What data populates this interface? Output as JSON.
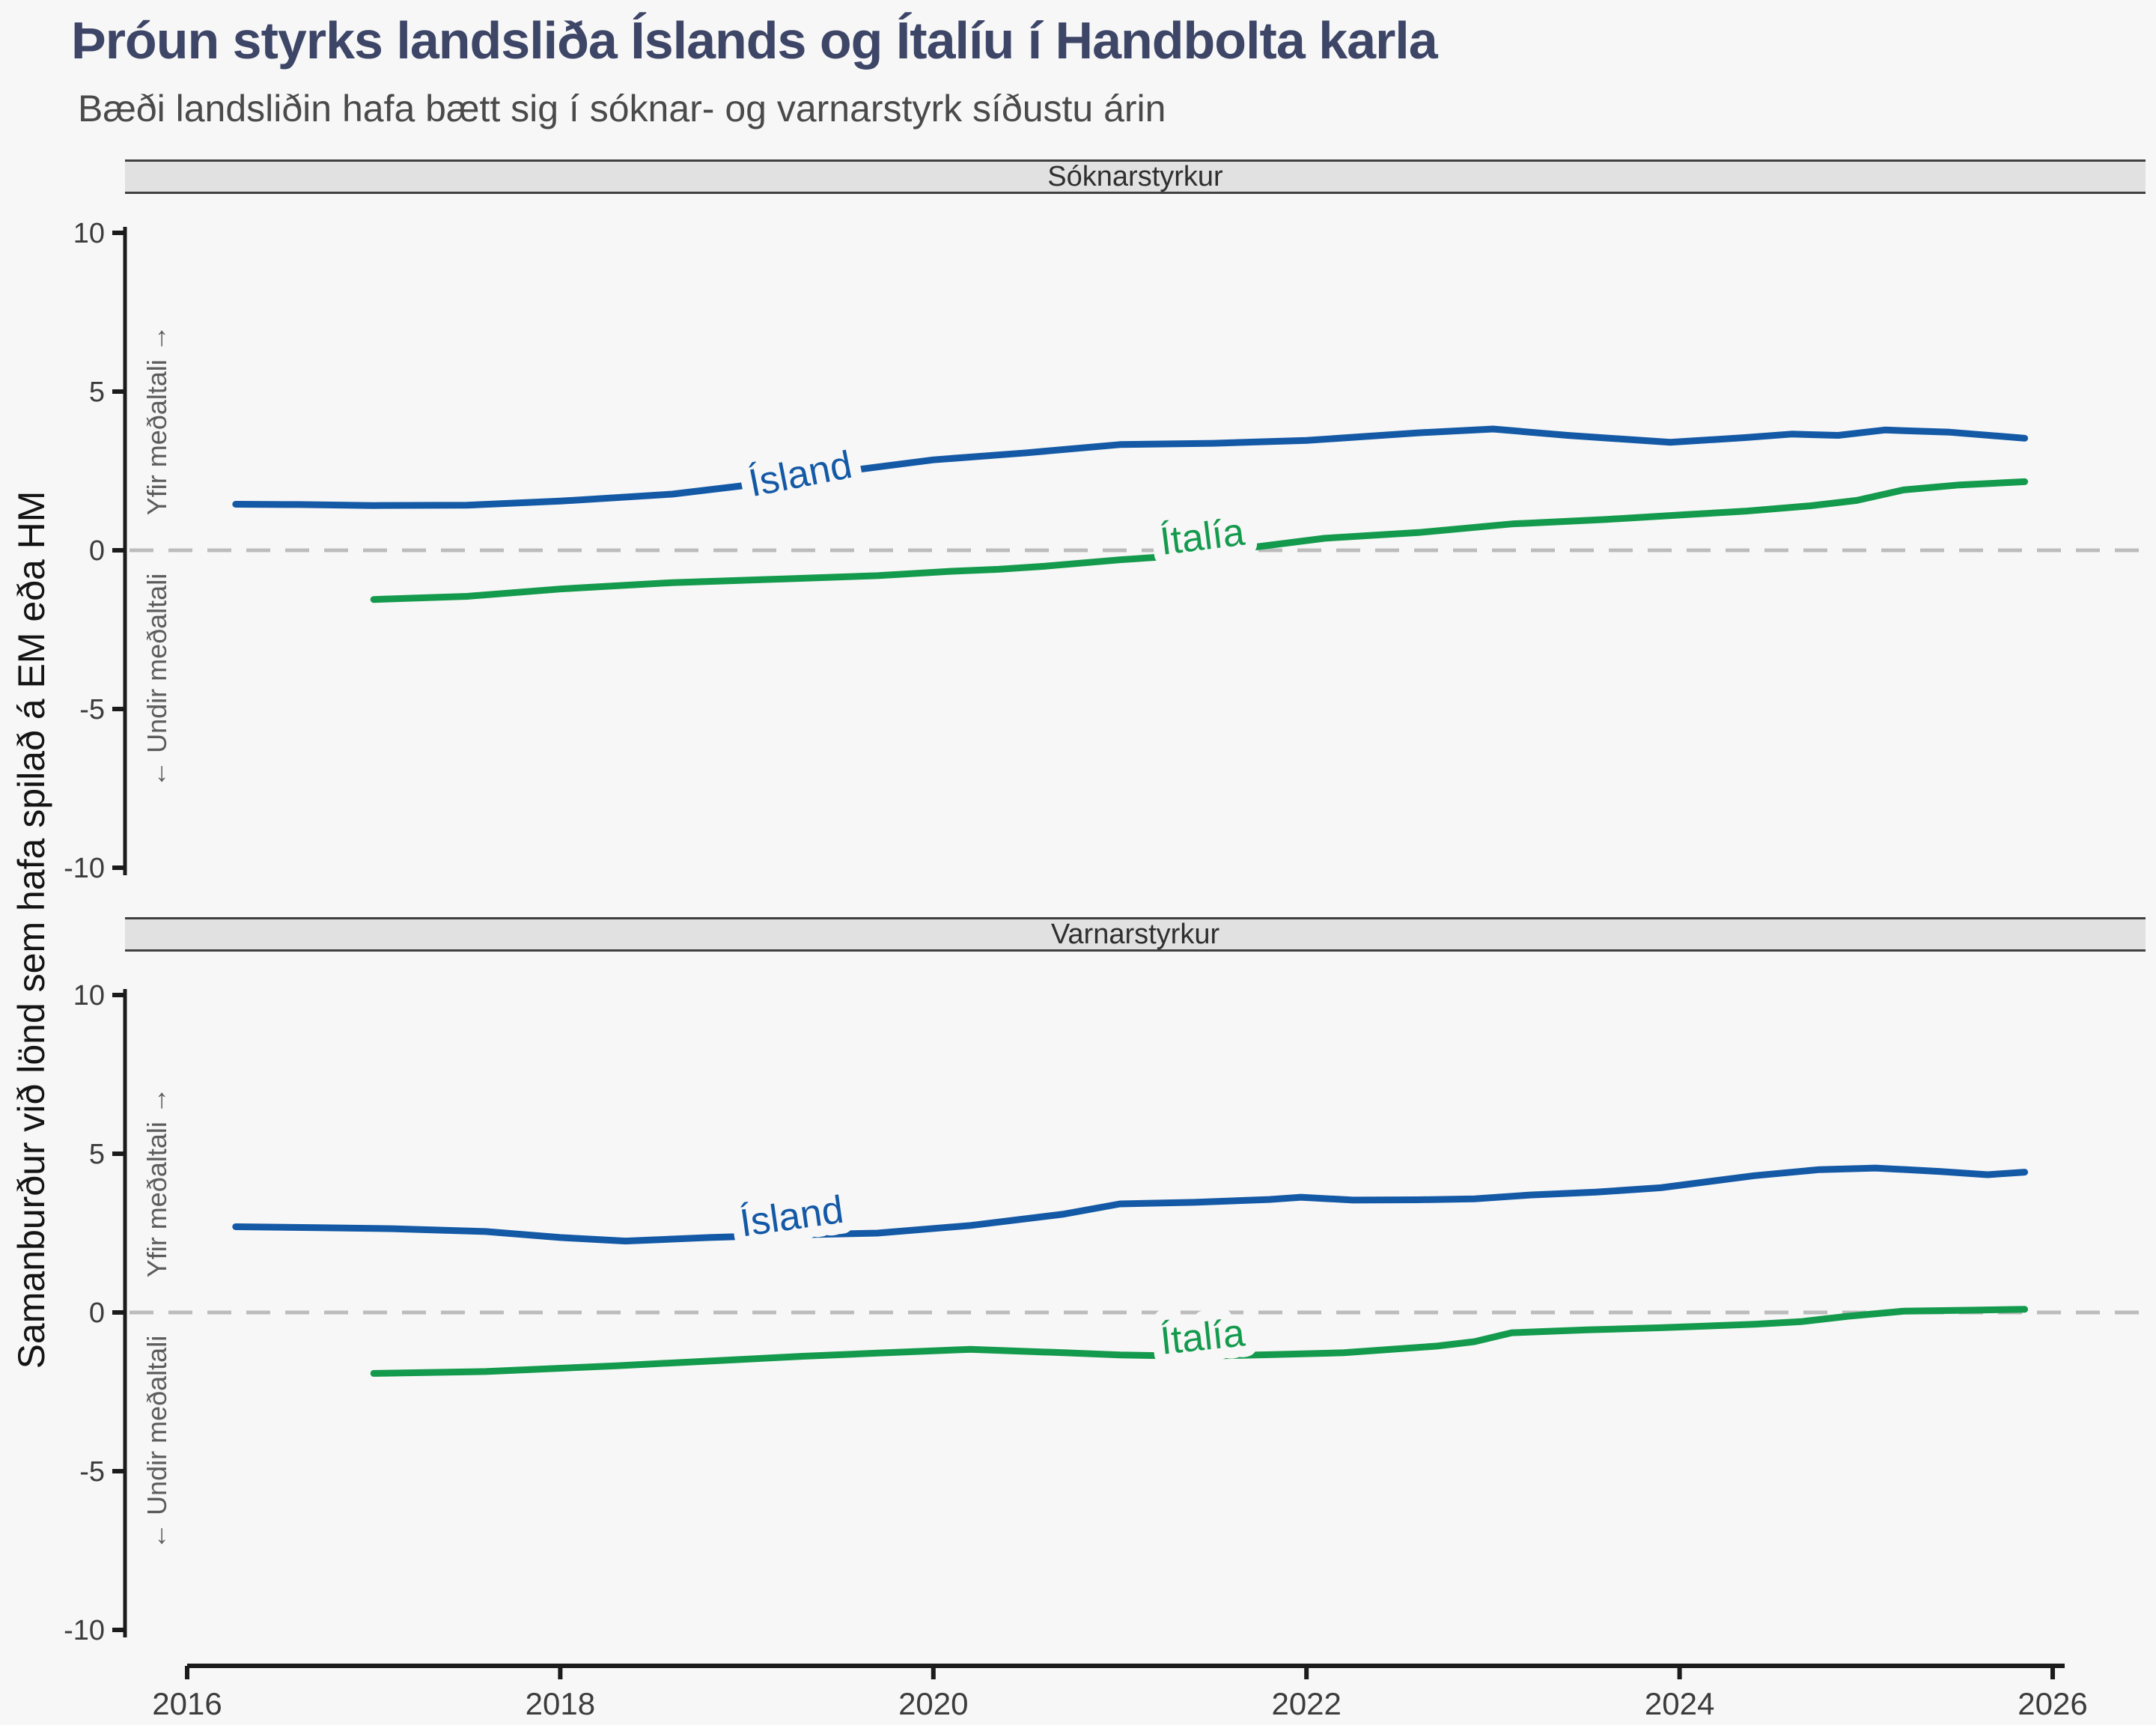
{
  "title": "Þróun styrks landsliða Íslands og Ítalíu í Handbolta karla",
  "subtitle": "Bæði landsliðin hafa bætt sig í sóknar- og varnarstyrk síðustu árin",
  "y_axis_outer_label": "Samanburður við lönd sem hafa spilað á EM eða HM",
  "annotations": {
    "above_zero": "Yfir meðaltali →",
    "below_zero": "← Undir meðaltali"
  },
  "colors": {
    "island": "#1459a6",
    "italia": "#149a4d",
    "title": "#3e4668",
    "subtitle": "#4a4a4a",
    "band_fill": "#e1e1e1",
    "band_border": "#404040",
    "axis": "#1b1b1b",
    "tick_text": "#3c3c3c",
    "zero_dash": "#bcbcbc",
    "annotation_text": "#5c5c5c",
    "background": "#f7f7f7"
  },
  "x_axis": {
    "ticks": [
      2016,
      2018,
      2020,
      2022,
      2024,
      2026
    ],
    "range": [
      2016,
      2026
    ]
  },
  "y_axis": {
    "ticks": [
      10,
      5,
      0,
      -5,
      -10
    ],
    "range": [
      -10,
      10
    ]
  },
  "chart_data": [
    {
      "type": "line",
      "panel_label": "Sóknarstyrkur",
      "xlabel": "",
      "ylabel": "Samanburður við lönd sem hafa spilað á EM eða HM",
      "ylim": [
        -10,
        10
      ],
      "grid": "zero-dashed-only",
      "legend_position": "inline-labels",
      "series": [
        {
          "name": "Ísland",
          "color": "#1459a6",
          "label_x": 2019.3,
          "label_y": 2.0,
          "label_angle": -11,
          "points": [
            [
              2016.26,
              1.45
            ],
            [
              2016.6,
              1.44
            ],
            [
              2017.0,
              1.41
            ],
            [
              2017.5,
              1.42
            ],
            [
              2018.0,
              1.55
            ],
            [
              2018.6,
              1.77
            ],
            [
              2019.0,
              2.05
            ],
            [
              2019.6,
              2.55
            ],
            [
              2020.0,
              2.85
            ],
            [
              2020.5,
              3.07
            ],
            [
              2021.0,
              3.33
            ],
            [
              2021.5,
              3.37
            ],
            [
              2022.0,
              3.46
            ],
            [
              2022.6,
              3.7
            ],
            [
              2023.0,
              3.82
            ],
            [
              2023.4,
              3.62
            ],
            [
              2023.95,
              3.4
            ],
            [
              2024.35,
              3.55
            ],
            [
              2024.6,
              3.66
            ],
            [
              2024.85,
              3.62
            ],
            [
              2025.1,
              3.79
            ],
            [
              2025.45,
              3.72
            ],
            [
              2025.85,
              3.53
            ]
          ]
        },
        {
          "name": "Ítalía",
          "color": "#149a4d",
          "label_x": 2021.45,
          "label_y": 0.02,
          "label_angle": -7,
          "points": [
            [
              2017.0,
              -1.55
            ],
            [
              2017.5,
              -1.45
            ],
            [
              2018.0,
              -1.22
            ],
            [
              2018.6,
              -1.02
            ],
            [
              2019.2,
              -0.9
            ],
            [
              2019.7,
              -0.8
            ],
            [
              2020.1,
              -0.66
            ],
            [
              2020.35,
              -0.6
            ],
            [
              2020.6,
              -0.5
            ],
            [
              2021.0,
              -0.3
            ],
            [
              2021.3,
              -0.18
            ],
            [
              2021.75,
              0.12
            ],
            [
              2022.1,
              0.38
            ],
            [
              2022.6,
              0.56
            ],
            [
              2023.1,
              0.83
            ],
            [
              2023.6,
              0.97
            ],
            [
              2024.05,
              1.13
            ],
            [
              2024.35,
              1.23
            ],
            [
              2024.7,
              1.4
            ],
            [
              2024.95,
              1.57
            ],
            [
              2025.2,
              1.9
            ],
            [
              2025.5,
              2.06
            ],
            [
              2025.85,
              2.16
            ]
          ]
        }
      ]
    },
    {
      "type": "line",
      "panel_label": "Varnarstyrkur",
      "xlabel": "",
      "ylabel": "Samanburður við lönd sem hafa spilað á EM eða HM",
      "ylim": [
        -10,
        10
      ],
      "grid": "zero-dashed-only",
      "legend_position": "inline-labels",
      "series": [
        {
          "name": "Ísland",
          "color": "#1459a6",
          "label_x": 2019.25,
          "label_y": 2.62,
          "label_angle": -8,
          "points": [
            [
              2016.26,
              2.7
            ],
            [
              2016.7,
              2.67
            ],
            [
              2017.1,
              2.64
            ],
            [
              2017.6,
              2.55
            ],
            [
              2018.0,
              2.36
            ],
            [
              2018.35,
              2.25
            ],
            [
              2018.8,
              2.36
            ],
            [
              2019.3,
              2.45
            ],
            [
              2019.7,
              2.5
            ],
            [
              2020.2,
              2.74
            ],
            [
              2020.7,
              3.1
            ],
            [
              2021.0,
              3.42
            ],
            [
              2021.4,
              3.47
            ],
            [
              2021.8,
              3.56
            ],
            [
              2021.97,
              3.63
            ],
            [
              2022.25,
              3.54
            ],
            [
              2022.6,
              3.55
            ],
            [
              2022.9,
              3.58
            ],
            [
              2023.2,
              3.7
            ],
            [
              2023.55,
              3.79
            ],
            [
              2023.9,
              3.93
            ],
            [
              2024.4,
              4.31
            ],
            [
              2024.75,
              4.5
            ],
            [
              2025.05,
              4.55
            ],
            [
              2025.4,
              4.44
            ],
            [
              2025.65,
              4.34
            ],
            [
              2025.85,
              4.42
            ]
          ]
        },
        {
          "name": "Ítalía",
          "color": "#149a4d",
          "label_x": 2021.45,
          "label_y": -1.18,
          "label_angle": -6,
          "points": [
            [
              2017.0,
              -1.92
            ],
            [
              2017.6,
              -1.86
            ],
            [
              2018.3,
              -1.68
            ],
            [
              2018.9,
              -1.5
            ],
            [
              2019.3,
              -1.38
            ],
            [
              2019.7,
              -1.28
            ],
            [
              2020.2,
              -1.16
            ],
            [
              2020.7,
              -1.27
            ],
            [
              2021.0,
              -1.34
            ],
            [
              2021.4,
              -1.38
            ],
            [
              2021.8,
              -1.33
            ],
            [
              2022.2,
              -1.27
            ],
            [
              2022.7,
              -1.06
            ],
            [
              2022.9,
              -0.92
            ],
            [
              2023.1,
              -0.64
            ],
            [
              2023.5,
              -0.55
            ],
            [
              2023.9,
              -0.48
            ],
            [
              2024.4,
              -0.37
            ],
            [
              2024.65,
              -0.29
            ],
            [
              2024.9,
              -0.12
            ],
            [
              2025.2,
              0.04
            ],
            [
              2025.55,
              0.07
            ],
            [
              2025.85,
              0.1
            ]
          ]
        }
      ]
    }
  ]
}
